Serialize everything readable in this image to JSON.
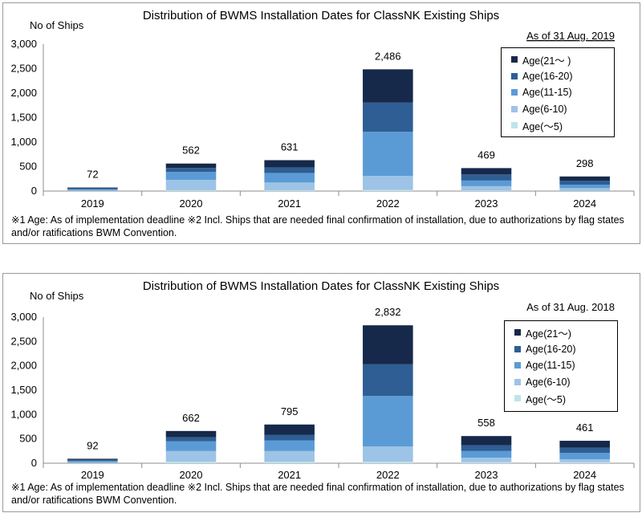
{
  "chart_data": [
    {
      "type": "bar",
      "stacked": true,
      "title": "Distribution of BWMS Installation Dates for ClassNK Existing Ships",
      "ylabel": "No of Ships",
      "as_of": "As of 31 Aug. 2019",
      "categories": [
        "2019",
        "2020",
        "2021",
        "2022",
        "2023",
        "2024"
      ],
      "totals": [
        72,
        562,
        631,
        2486,
        469,
        298
      ],
      "total_labels": [
        "72",
        "562",
        "631",
        "2,486",
        "469",
        "298"
      ],
      "yticks": [
        "0",
        "500",
        "1,000",
        "1,500",
        "2,000",
        "2,500",
        "3,000"
      ],
      "ylim": [
        0,
        3000
      ],
      "series": [
        {
          "name": "Age(〜5)",
          "color": "#bfe3ec",
          "values": [
            2,
            15,
            15,
            25,
            10,
            5
          ]
        },
        {
          "name": "Age(6-10)",
          "color": "#9dc3e6",
          "values": [
            15,
            215,
            160,
            285,
            90,
            55
          ]
        },
        {
          "name": "Age(11-15)",
          "color": "#5b9bd5",
          "values": [
            25,
            160,
            195,
            900,
            115,
            70
          ]
        },
        {
          "name": "Age(16-20)",
          "color": "#2e5e94",
          "values": [
            15,
            82,
            111,
            596,
            124,
            78
          ]
        },
        {
          "name": "Age(21〜 )",
          "color": "#16294a",
          "values": [
            15,
            90,
            150,
            680,
            130,
            90
          ]
        }
      ],
      "legend_labels": [
        "Age(21〜 )",
        "Age(16-20)",
        "Age(11-15)",
        "Age(6-10)",
        "Age(〜5)"
      ],
      "legend_colors": [
        "#16294a",
        "#2e5e94",
        "#5b9bd5",
        "#9dc3e6",
        "#bfe3ec"
      ],
      "legend_position": "top-right",
      "footnote": "※1 Age: As of implementation deadline ※2 Incl. Ships that are needed final confirmation of installation, due to authorizations by flag states and/or ratifications BWM Convention."
    },
    {
      "type": "bar",
      "stacked": true,
      "title": "Distribution of BWMS Installation Dates for ClassNK Existing Ships",
      "ylabel": "No of Ships",
      "as_of": "As of 31 Aug. 2018",
      "categories": [
        "2019",
        "2020",
        "2021",
        "2022",
        "2023",
        "2024"
      ],
      "totals": [
        92,
        662,
        795,
        2832,
        558,
        461
      ],
      "total_labels": [
        "92",
        "662",
        "795",
        "2,832",
        "558",
        "461"
      ],
      "yticks": [
        "0",
        "500",
        "1,000",
        "1,500",
        "2,000",
        "2,500",
        "3,000"
      ],
      "ylim": [
        0,
        3000
      ],
      "series": [
        {
          "name": "Age(〜5)",
          "color": "#bfe3ec",
          "values": [
            3,
            30,
            30,
            30,
            20,
            20
          ]
        },
        {
          "name": "Age(6-10)",
          "color": "#9dc3e6",
          "values": [
            15,
            220,
            220,
            315,
            95,
            60
          ]
        },
        {
          "name": "Age(11-15)",
          "color": "#5b9bd5",
          "values": [
            30,
            200,
            220,
            1035,
            135,
            130
          ]
        },
        {
          "name": "Age(16-20)",
          "color": "#2e5e94",
          "values": [
            22,
            82,
            115,
            650,
            118,
            110
          ]
        },
        {
          "name": "Age(21〜)",
          "color": "#16294a",
          "values": [
            22,
            130,
            210,
            802,
            190,
            141
          ]
        }
      ],
      "legend_labels": [
        "Age(21〜)",
        "Age(16-20)",
        "Age(11-15)",
        "Age(6-10)",
        "Age(〜5)"
      ],
      "legend_colors": [
        "#16294a",
        "#2e5e94",
        "#5b9bd5",
        "#9dc3e6",
        "#bfe3ec"
      ],
      "legend_position": "top-right",
      "footnote": "※1 Age: As of implementation deadline   ※2 Incl. Ships that are needed final confirmation of installation, due to authorizations by flag states and/or ratifications BWM Convention."
    }
  ]
}
